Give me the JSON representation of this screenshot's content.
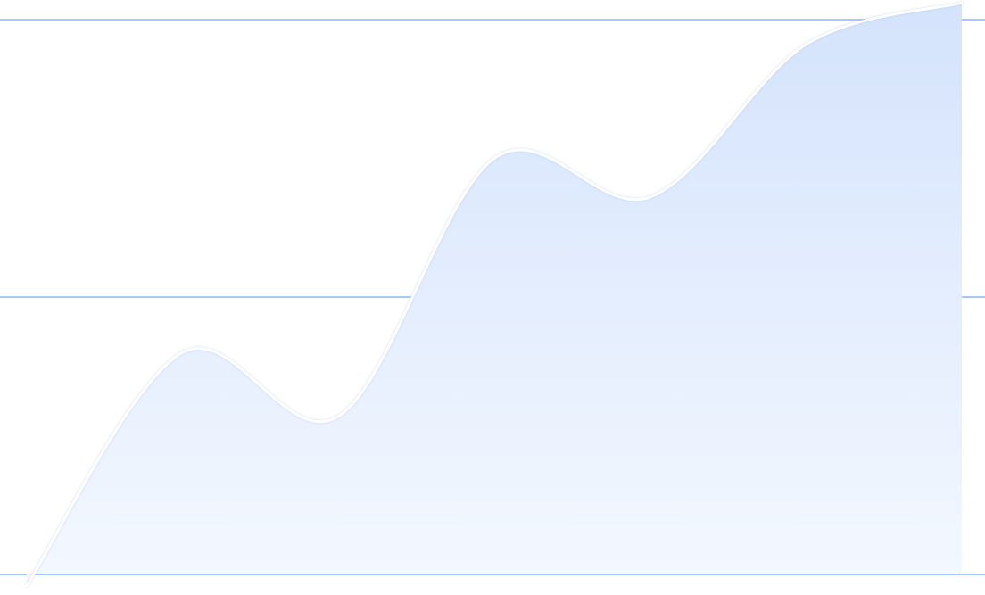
{
  "chart_data": {
    "type": "area",
    "title": "",
    "xlabel": "",
    "ylabel": "",
    "x": [
      0,
      1,
      2,
      3,
      4,
      5,
      6
    ],
    "ylim": [
      0,
      2
    ],
    "series": [
      {
        "values": [
          -0.04,
          0.8,
          0.57,
          1.5,
          1.36,
          1.91,
          2.06
        ]
      }
    ],
    "grid": true,
    "legend": "none",
    "colors": {
      "fill_top": "#d4e3fc",
      "fill_bottom": "#f4f8ff",
      "line": "#ffffff",
      "grid": "#aac8f5"
    }
  }
}
